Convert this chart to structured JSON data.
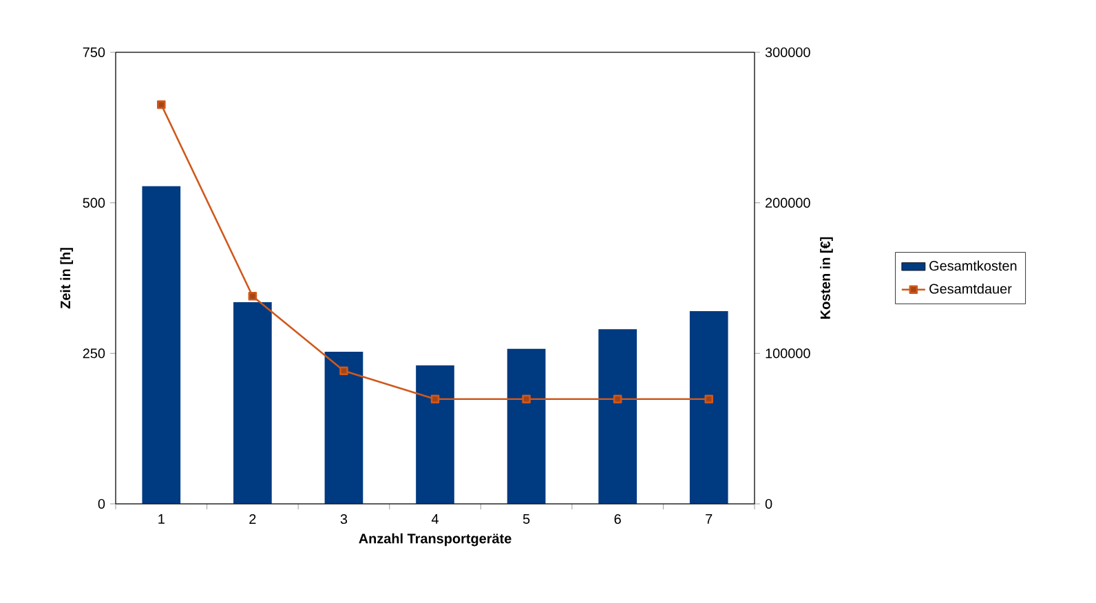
{
  "chart_data": {
    "type": "bar",
    "xlabel": "Anzahl Transportgeräte",
    "ylabel": "Zeit in [h]",
    "y2label": "Kosten in [€]",
    "categories": [
      "1",
      "2",
      "3",
      "4",
      "5",
      "6",
      "7"
    ],
    "series": [
      {
        "name": "Gesamtkosten",
        "type": "bar",
        "axis": "y2",
        "color": "#003a80",
        "values": [
          211000,
          134000,
          101000,
          92000,
          103000,
          116000,
          128000
        ]
      },
      {
        "name": "Gesamtdauer",
        "type": "line",
        "color": "#d0581c",
        "marker": "square",
        "values": [
          663,
          345,
          221,
          174,
          174,
          174,
          174
        ]
      }
    ],
    "ylim": [
      0,
      750
    ],
    "yticks": [
      0,
      250,
      500,
      750
    ],
    "y2lim": [
      0,
      300000
    ],
    "y2ticks": [
      0,
      100000,
      200000,
      300000
    ],
    "grid": false,
    "legend": "right"
  }
}
